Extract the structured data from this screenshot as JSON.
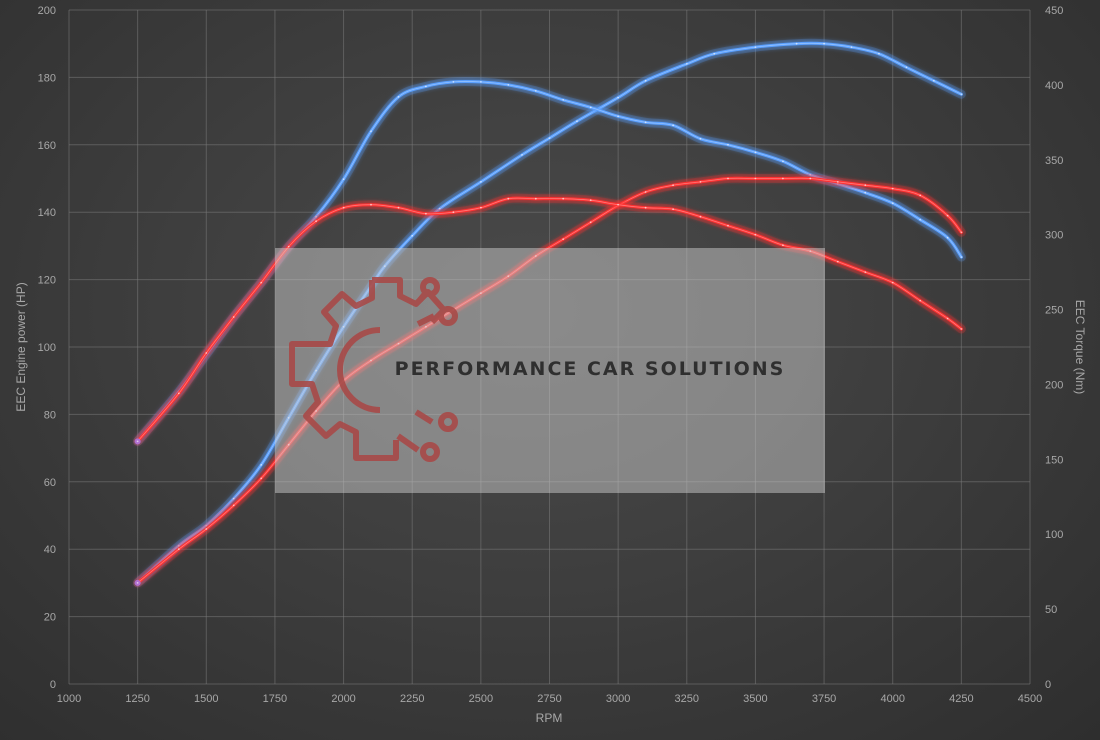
{
  "watermark": {
    "brand": "PERFORMANCE CAR SOLUTIONS",
    "logo": "gear-circuit-logo"
  },
  "chart_data": {
    "type": "line",
    "xlabel": "RPM",
    "ylabel": "EEC Engine power (HP)",
    "y2label": "EEC Torque (Nm)",
    "xlim": [
      1000,
      4500
    ],
    "ylim": [
      0,
      200
    ],
    "y2lim": [
      0,
      450
    ],
    "x_ticks": [
      1000,
      1250,
      1500,
      1750,
      2000,
      2250,
      2500,
      2750,
      3000,
      3250,
      3500,
      3750,
      4000,
      4250,
      4500
    ],
    "y_ticks": [
      0,
      20,
      40,
      60,
      80,
      100,
      120,
      140,
      160,
      180,
      200
    ],
    "y2_ticks": [
      0,
      50,
      100,
      150,
      200,
      250,
      300,
      350,
      400,
      450
    ],
    "grid": true,
    "legend": "none",
    "colors": {
      "tuned": "#5aa0ff",
      "stock": "#ff3030",
      "start_tint": "#b070d0"
    },
    "series": [
      {
        "axis": "power",
        "color": "tuned",
        "x": [
          1250,
          1400,
          1500,
          1600,
          1700,
          1800,
          1900,
          2000,
          2100,
          2150,
          2250,
          2350,
          2500,
          2650,
          2750,
          2850,
          3000,
          3100,
          3250,
          3350,
          3500,
          3650,
          3750,
          3850,
          3950,
          4050,
          4150,
          4250
        ],
        "y": [
          30,
          41,
          47,
          55,
          65,
          79,
          93,
          106,
          118,
          124,
          133,
          141,
          149,
          157,
          162,
          167,
          174,
          179,
          184,
          187,
          189,
          190,
          190,
          189,
          187,
          183,
          179,
          175
        ]
      },
      {
        "axis": "torque",
        "color": "tuned",
        "x": [
          1250,
          1400,
          1500,
          1600,
          1700,
          1800,
          1900,
          2000,
          2100,
          2200,
          2300,
          2400,
          2500,
          2600,
          2700,
          2800,
          2900,
          3000,
          3100,
          3200,
          3300,
          3400,
          3500,
          3600,
          3700,
          3800,
          3900,
          4000,
          4100,
          4200,
          4250
        ],
        "y": [
          162,
          195,
          220,
          245,
          268,
          292,
          312,
          337,
          369,
          392,
          399,
          402,
          402,
          400,
          396,
          390,
          385,
          379,
          375,
          373,
          364,
          360,
          355,
          349,
          340,
          334,
          328,
          321,
          310,
          298,
          285
        ]
      },
      {
        "axis": "power",
        "color": "stock",
        "x": [
          1250,
          1400,
          1500,
          1600,
          1700,
          1800,
          1900,
          2000,
          2100,
          2200,
          2300,
          2400,
          2500,
          2600,
          2700,
          2800,
          2900,
          3000,
          3100,
          3200,
          3300,
          3400,
          3500,
          3600,
          3700,
          3800,
          3900,
          4000,
          4100,
          4200,
          4250
        ],
        "y": [
          30,
          40,
          46,
          53,
          61,
          71,
          81,
          90,
          96,
          101,
          106,
          111,
          116,
          121,
          127,
          132,
          137,
          142,
          146,
          148,
          149,
          150,
          150,
          150,
          150,
          149,
          148,
          147,
          145,
          139,
          134
        ]
      },
      {
        "axis": "torque",
        "color": "stock",
        "x": [
          1250,
          1400,
          1500,
          1600,
          1700,
          1800,
          1900,
          2000,
          2100,
          2200,
          2300,
          2400,
          2500,
          2600,
          2700,
          2800,
          2900,
          3000,
          3100,
          3200,
          3300,
          3400,
          3500,
          3600,
          3700,
          3800,
          3900,
          4000,
          4100,
          4200,
          4250
        ],
        "y": [
          162,
          194,
          221,
          245,
          268,
          292,
          309,
          318,
          320,
          318,
          314,
          315,
          318,
          324,
          324,
          324,
          323,
          320,
          318,
          317,
          312,
          306,
          300,
          293,
          289,
          282,
          275,
          268,
          256,
          244,
          237
        ]
      }
    ]
  }
}
